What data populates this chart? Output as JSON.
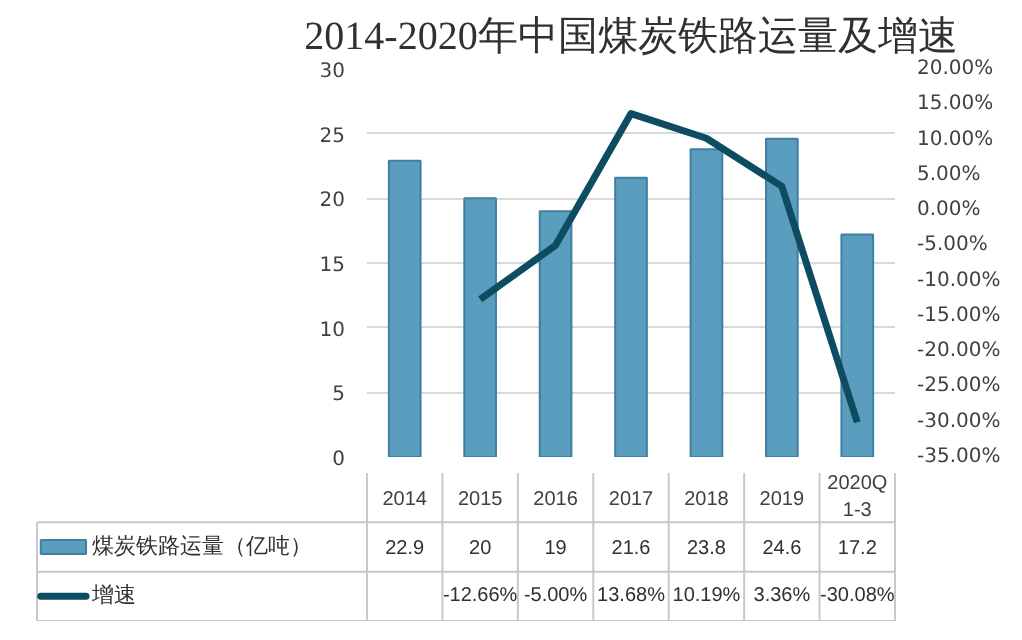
{
  "chart_data": {
    "type": "bar",
    "title": "2014-2020年中国煤炭铁路运量及增速",
    "categories": [
      "2014",
      "2015",
      "2016",
      "2017",
      "2018",
      "2019",
      "2020Q1-3"
    ],
    "series": [
      {
        "name": "煤炭铁路运量（亿吨）",
        "color": "#5b9dbf",
        "values": [
          22.9,
          20,
          19,
          21.6,
          23.8,
          24.6,
          17.2
        ],
        "value_labels": [
          "22.9",
          "20",
          "19",
          "21.6",
          "23.8",
          "24.6",
          "17.2"
        ]
      },
      {
        "name": "增速",
        "type": "line",
        "axis": "y2",
        "color": "#0e4d61",
        "values": [
          null,
          -12.66,
          -5.0,
          13.68,
          10.19,
          3.36,
          -30.08
        ],
        "value_labels": [
          null,
          "-12.66%",
          "-5.00%",
          "13.68%",
          "10.19%",
          "3.36%",
          "-30.08%"
        ]
      }
    ],
    "ylim": [
      0,
      30
    ],
    "yticks": [
      0,
      5,
      10,
      15,
      20,
      25,
      30
    ],
    "y2lim": [
      -35,
      20
    ],
    "y2ticks": [
      {
        "value": -35,
        "label": "-35.00%"
      },
      {
        "value": -30,
        "label": "-30.00%"
      },
      {
        "value": -25,
        "label": "-25.00%"
      },
      {
        "value": -20,
        "label": "-20.00%"
      },
      {
        "value": -15,
        "label": "-15.00%"
      },
      {
        "value": -10,
        "label": "-10.00%"
      },
      {
        "value": -5,
        "label": "-5.00%"
      },
      {
        "value": 0,
        "label": "0.00%"
      },
      {
        "value": 5,
        "label": "5.00%"
      },
      {
        "value": 10,
        "label": "10.00%"
      },
      {
        "value": 15,
        "label": "15.00%"
      },
      {
        "value": 20,
        "label": "20.00%"
      }
    ],
    "grid": "y",
    "legend": "bottom left"
  }
}
